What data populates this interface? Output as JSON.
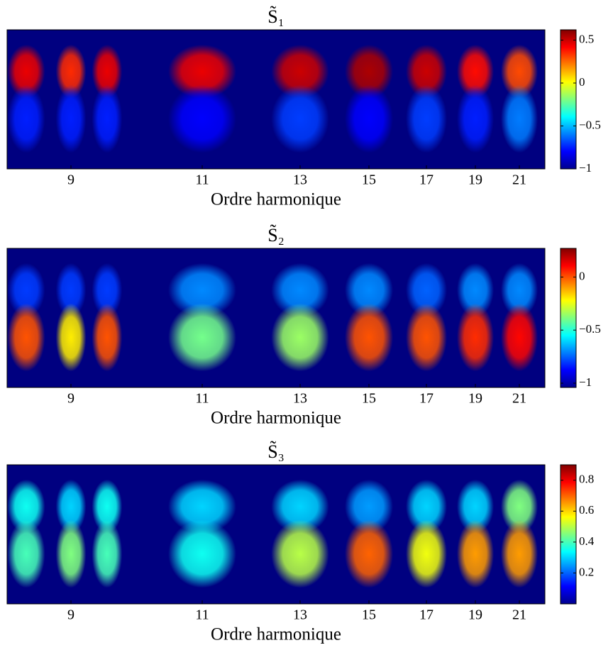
{
  "chart_data": [
    {
      "type": "heatmap",
      "title": "S̃₁",
      "xlabel": "Ordre harmonique",
      "colormap": "jet",
      "x": [
        8.3,
        9,
        9.55,
        11,
        13,
        15,
        17,
        19,
        21
      ],
      "z": [
        [
          0.45,
          0.35,
          0.45,
          0.45,
          0.5,
          0.55,
          0.5,
          0.4,
          0.3
        ],
        [
          -0.75,
          -0.75,
          -0.75,
          -0.8,
          -0.7,
          -0.8,
          -0.7,
          -0.75,
          -0.6
        ]
      ],
      "xlim": [
        8,
        22.2
      ],
      "xticks": [
        9,
        11,
        13,
        15,
        17,
        19,
        21
      ],
      "clim": [
        -1,
        0.62
      ],
      "cticks": [
        0.5,
        0,
        {
          "value": -0.5,
          "label": "−0.5"
        },
        {
          "value": -1,
          "label": "−1"
        }
      ]
    },
    {
      "type": "heatmap",
      "title": "S̃₂",
      "xlabel": "Ordre harmonique",
      "colormap": "jet",
      "x": [
        8.3,
        9,
        9.55,
        11,
        13,
        15,
        17,
        19,
        21
      ],
      "z": [
        [
          -0.8,
          -0.8,
          -0.8,
          -0.7,
          -0.7,
          -0.7,
          -0.75,
          -0.7,
          -0.7
        ],
        [
          0,
          -0.2,
          0,
          -0.4,
          -0.35,
          0,
          0,
          0.05,
          0.1
        ]
      ],
      "xlim": [
        8,
        22.2
      ],
      "xticks": [
        9,
        11,
        13,
        15,
        17,
        19,
        21
      ],
      "clim": [
        -1.04,
        0.27
      ],
      "cticks": [
        0,
        {
          "value": -0.5,
          "label": "−0.5"
        },
        {
          "value": -1,
          "label": "−1"
        }
      ]
    },
    {
      "type": "heatmap",
      "title": "S̃₃",
      "xlabel": "Ordre harmonique",
      "colormap": "jet",
      "x": [
        8.3,
        9,
        9.55,
        11,
        13,
        15,
        17,
        19,
        21
      ],
      "z": [
        [
          0.35,
          0.3,
          0.35,
          0.3,
          0.3,
          0.25,
          0.3,
          0.3,
          0.45
        ],
        [
          0.4,
          0.45,
          0.4,
          0.35,
          0.5,
          0.7,
          0.55,
          0.65,
          0.65
        ]
      ],
      "xlim": [
        8,
        22.2
      ],
      "xticks": [
        9,
        11,
        13,
        15,
        17,
        19,
        21
      ],
      "clim": [
        0,
        0.9
      ],
      "cticks": [
        0.8,
        0.6,
        0.4,
        0.2
      ]
    }
  ]
}
